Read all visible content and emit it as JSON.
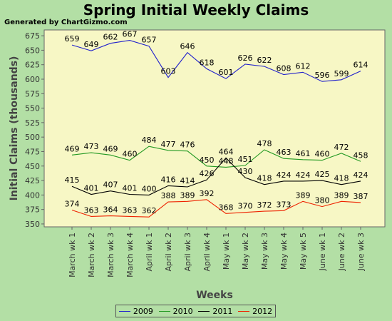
{
  "chart_data": {
    "type": "line",
    "title": "Spring Initial Weekly Claims",
    "subtitle": "Generated by ChartGizmo.com",
    "xlabel": "Weeks",
    "ylabel": "Initial Claims (thousands)",
    "ylim": [
      345,
      685
    ],
    "yticks": [
      350,
      375,
      400,
      425,
      450,
      475,
      500,
      525,
      550,
      575,
      600,
      625,
      650,
      675
    ],
    "grid": false,
    "legend_position": "bottom",
    "categories": [
      "March wk 1",
      "March wk 2",
      "March wk 3",
      "March wk 4",
      "April wk 1",
      "April wk 2",
      "April wk 3",
      "April wk 4",
      "May wk 1",
      "May wk 2",
      "May wk 3",
      "May wk 4",
      "May wk 5",
      "June wk 1",
      "June wk 2",
      "June wk 3"
    ],
    "series": [
      {
        "name": "2009",
        "color": "#2222cc",
        "values": [
          659,
          649,
          662,
          667,
          657,
          603,
          646,
          618,
          601,
          626,
          622,
          608,
          612,
          596,
          599,
          614
        ]
      },
      {
        "name": "2010",
        "color": "#229922",
        "values": [
          469,
          473,
          469,
          460,
          484,
          477,
          476,
          450,
          448,
          451,
          478,
          463,
          461,
          460,
          472,
          458
        ]
      },
      {
        "name": "2011",
        "color": "#000000",
        "values": [
          415,
          401,
          407,
          401,
          400,
          416,
          414,
          426,
          464,
          430,
          418,
          424,
          424,
          425,
          418,
          424
        ]
      },
      {
        "name": "2012",
        "color": "#ee2200",
        "values": [
          374,
          363,
          364,
          363,
          362,
          388,
          389,
          392,
          368,
          370,
          372,
          373,
          389,
          380,
          389,
          387
        ]
      }
    ]
  }
}
